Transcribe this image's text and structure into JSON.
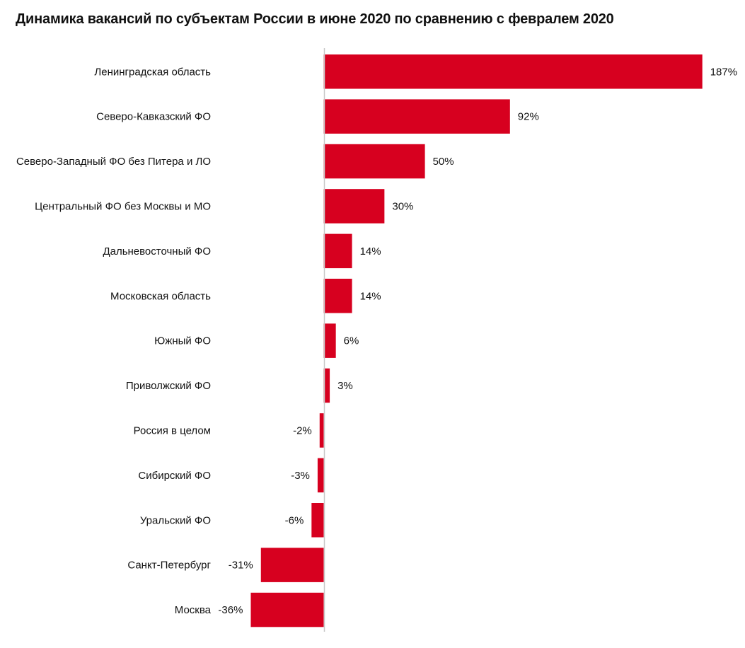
{
  "chart_data": {
    "type": "bar",
    "orientation": "horizontal",
    "title": "Динамика вакансий по субъектам России в июне 2020 по сравнению с февралем 2020",
    "xlabel": "",
    "ylabel": "",
    "unit": "%",
    "bar_color": "#d7001f",
    "axis_color": "#c8c8c8",
    "grid": false,
    "categories": [
      "Ленинградская область",
      "Северо-Кавказский ФО",
      "Северо-Западный ФО без Питера и ЛО",
      "Центральный ФО без Москвы и МО",
      "Дальневосточный ФО",
      "Московская область",
      "Южный ФО",
      "Приволжский ФО",
      "Россия в целом",
      "Сибирский ФО",
      "Уральский ФО",
      "Санкт-Петербург",
      "Москва"
    ],
    "values": [
      187,
      92,
      50,
      30,
      14,
      14,
      6,
      3,
      -2,
      -3,
      -6,
      -31,
      -36
    ],
    "labels": [
      "187%",
      "92%",
      "50%",
      "30%",
      "14%",
      "14%",
      "6%",
      "3%",
      "-2%",
      "-3%",
      "-6%",
      "-31%",
      "-36%"
    ]
  }
}
